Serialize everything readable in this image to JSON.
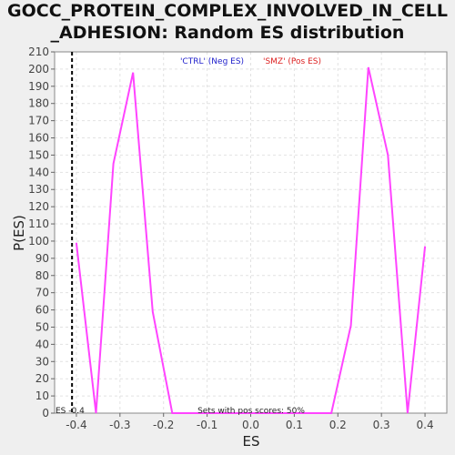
{
  "chart_data": {
    "type": "line",
    "title_line1": "GOCC_PROTEIN_COMPLEX_INVOLVED_IN_CELL",
    "title_line2": "_ADHESION: Random ES distribution",
    "xlabel": "ES",
    "ylabel": "P(ES)",
    "xlim": [
      -0.45,
      0.45
    ],
    "ylim": [
      0,
      210
    ],
    "x_ticks": [
      "-0.4",
      "-0.3",
      "-0.2",
      "-0.1",
      "0.0",
      "0.1",
      "0.2",
      "0.3",
      "0.4"
    ],
    "x_tick_values": [
      -0.4,
      -0.3,
      -0.2,
      -0.1,
      0.0,
      0.1,
      0.2,
      0.3,
      0.4
    ],
    "y_ticks": [
      0,
      10,
      20,
      30,
      40,
      50,
      60,
      70,
      80,
      90,
      100,
      110,
      120,
      130,
      140,
      150,
      160,
      170,
      180,
      190,
      200,
      210
    ],
    "grid": true,
    "series": [
      {
        "color": "#ff44ff",
        "x": [
          -0.4,
          -0.355,
          -0.315,
          -0.27,
          -0.225,
          -0.18,
          -0.135,
          0.185,
          0.23,
          0.27,
          0.315,
          0.36,
          0.4
        ],
        "y": [
          99,
          0,
          145,
          198,
          59,
          0,
          0,
          0,
          51,
          201,
          150,
          0,
          97
        ]
      }
    ],
    "annotations": {
      "neg_label": "'CTRL' (Neg ES)",
      "neg_color": "#2222cc",
      "pos_label": "'SMZ' (Pos ES)",
      "pos_color": "#dd2222",
      "actual_es_label": "ES -0.4",
      "actual_es_value": -0.41,
      "footer_label": "Sets with pos scores: 50%"
    }
  }
}
